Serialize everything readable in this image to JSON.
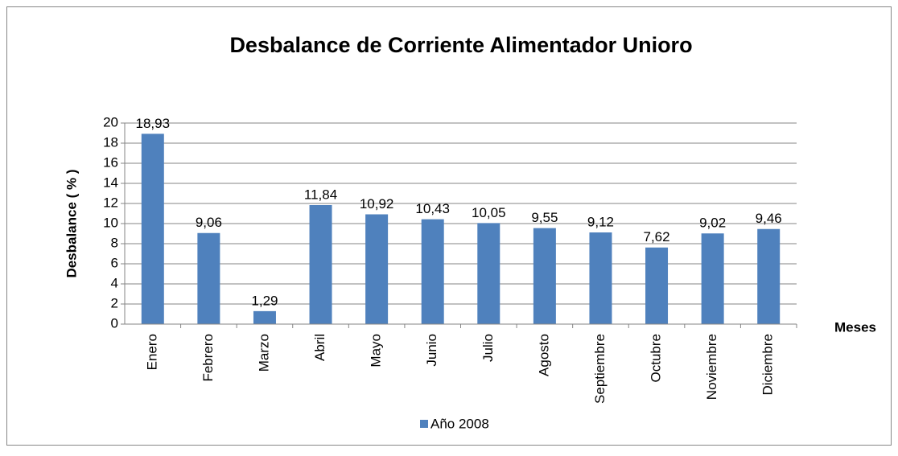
{
  "chart_data": {
    "type": "bar",
    "title": "Desbalance de Corriente Alimentador  Unioro",
    "y_label": "Desbalance  ( % )",
    "x_label": "Meses",
    "categories": [
      "Enero",
      "Febrero",
      "Marzo",
      "Abril",
      "Mayo",
      "Junio",
      "Julio",
      "Agosto",
      "Septiembre",
      "Octubre",
      "Noviembre",
      "Diciembre"
    ],
    "series": [
      {
        "name": "Año 2008",
        "color": "#4f81bd",
        "values": [
          18.93,
          9.06,
          1.29,
          11.84,
          10.92,
          10.43,
          10.05,
          9.55,
          9.12,
          7.62,
          9.02,
          9.46
        ],
        "value_labels": [
          "18,93",
          "9,06",
          "1,29",
          "11,84",
          "10,92",
          "10,43",
          "10,05",
          "9,55",
          "9,12",
          "7,62",
          "9,02",
          "9,46"
        ]
      }
    ],
    "ylim": [
      0,
      20
    ],
    "yticks": [
      0,
      2,
      4,
      6,
      8,
      10,
      12,
      14,
      16,
      18,
      20
    ],
    "grid": true,
    "legend": "bottom"
  }
}
